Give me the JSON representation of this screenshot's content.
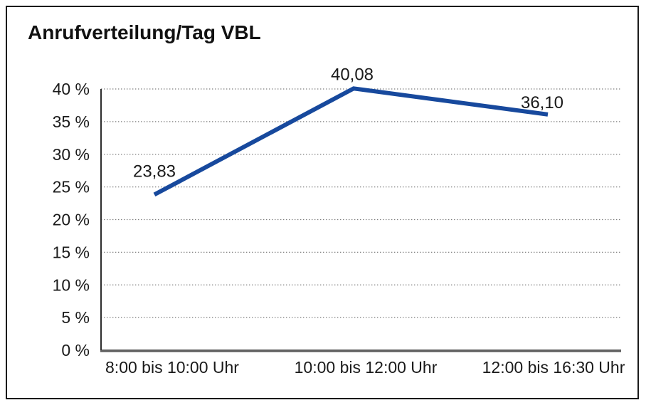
{
  "chart_data": {
    "type": "line",
    "title": "Anrufverteilung/Tag VBL",
    "categories": [
      "8:00 bis 10:00 Uhr",
      "10:00 bis 12:00 Uhr",
      "12:00 bis 16:30 Uhr"
    ],
    "series": [
      {
        "name": "Anrufverteilung",
        "values": [
          23.83,
          40.08,
          36.1
        ],
        "value_labels": [
          "23,83",
          "40,08",
          "36,10"
        ]
      }
    ],
    "xlabel": "",
    "ylabel": "",
    "ylim": [
      0,
      40
    ],
    "y_ticks": [
      0,
      5,
      10,
      15,
      20,
      25,
      30,
      35,
      40
    ],
    "y_tick_labels": [
      "0 %",
      "5 %",
      "10 %",
      "15 %",
      "20 %",
      "25 %",
      "30 %",
      "35 %",
      "40 %"
    ],
    "grid": "horizontal-dotted",
    "legend": "none",
    "colors": {
      "line": "#17499d",
      "grid_dots": "#7d7d7d",
      "y_axis": "#2e2e2e",
      "x_axis": "#5a5a5a",
      "text": "#1a1a1a",
      "frame_border": "#1a1a1a",
      "background": "#ffffff"
    }
  }
}
